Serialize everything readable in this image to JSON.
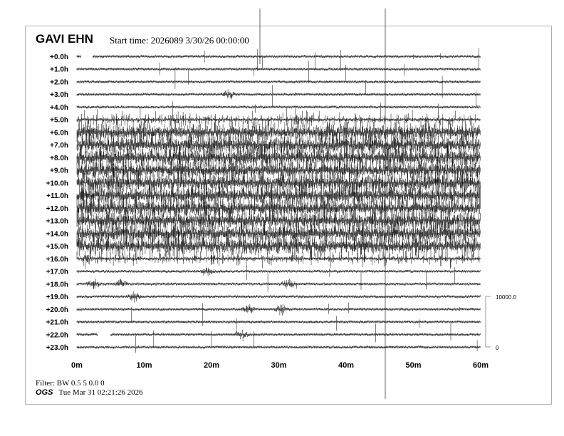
{
  "header": {
    "station": "GAVI EHN",
    "start_time": "Start time: 2026089  3/30/26 00:00:00"
  },
  "footer": {
    "filter": "Filter: BW 0.5 5 0.0 0",
    "org": "OGS",
    "timestamp": "Tue Mar 31 02:21:26 2026"
  },
  "chart_data": {
    "type": "helicorder",
    "row_labels": [
      "+0.0h",
      "+1.0h",
      "+2.0h",
      "+3.0h",
      "+4.0h",
      "+5.0h",
      "+6.0h",
      "+7.0h",
      "+8.0h",
      "+9.0h",
      "+10.0h",
      "+11.0h",
      "+12.0h",
      "+13.0h",
      "+14.0h",
      "+15.0h",
      "+16.0h",
      "+17.0h",
      "+18.0h",
      "+19.0h",
      "+20.0h",
      "+21.0h",
      "+22.0h",
      "+23.0h"
    ],
    "x_ticks": [
      "0m",
      "10m",
      "20m",
      "30m",
      "40m",
      "50m",
      "60m"
    ],
    "xlim": [
      0,
      60
    ],
    "scale": {
      "top": "10000.0",
      "bottom": "0"
    },
    "trace_color": "#000000",
    "noisy_hours": [
      6,
      7,
      8,
      9,
      10,
      11,
      12,
      13,
      14,
      15
    ],
    "events": [
      {
        "hour": 3,
        "minute": 22.5
      },
      {
        "hour": 16,
        "minute": 1.5
      },
      {
        "hour": 17,
        "minute": 19.5
      },
      {
        "hour": 18,
        "minute": 2.5
      },
      {
        "hour": 18,
        "minute": 6.5
      },
      {
        "hour": 18,
        "minute": 31.5
      },
      {
        "hour": 19,
        "minute": 8.5
      },
      {
        "hour": 20,
        "minute": 25.5
      },
      {
        "hour": 20,
        "minute": 30.5
      },
      {
        "hour": 22,
        "minute": 24.5
      }
    ],
    "gaps": [
      {
        "hour": 0,
        "from": 0.6,
        "to": 2.3
      },
      {
        "hour": 22,
        "from": 3.1,
        "to": 5.0
      }
    ]
  }
}
